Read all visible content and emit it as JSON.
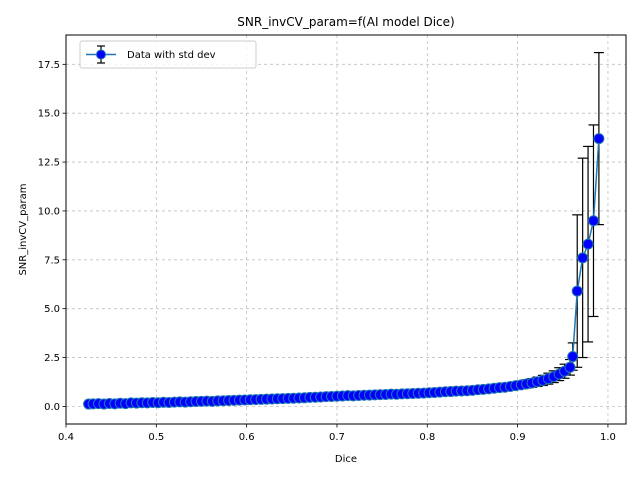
{
  "chart_data": {
    "type": "scatter",
    "title": "SNR_invCV_param=f(AI model Dice)",
    "xlabel": "Dice",
    "ylabel": "SNR_invCV_param",
    "xlim": [
      0.4,
      1.02
    ],
    "ylim": [
      -0.9,
      19.0
    ],
    "xticks": [
      0.4,
      0.5,
      0.6,
      0.7,
      0.8,
      0.9,
      1.0
    ],
    "xtick_labels": [
      "0.4",
      "0.5",
      "0.6",
      "0.7",
      "0.8",
      "0.9",
      "1.0"
    ],
    "yticks": [
      0.0,
      2.5,
      5.0,
      7.5,
      10.0,
      12.5,
      15.0,
      17.5
    ],
    "ytick_labels": [
      "0.0",
      "2.5",
      "5.0",
      "7.5",
      "10.0",
      "12.5",
      "15.0",
      "17.5"
    ],
    "grid": true,
    "legend_position": "top-left",
    "series": [
      {
        "name": "Data with std dev",
        "line_color": "#1f77b4",
        "marker_color": "#0000ff",
        "errorbar_color": "#000000",
        "x": [
          0.425,
          0.43,
          0.436,
          0.442,
          0.448,
          0.454,
          0.46,
          0.466,
          0.472,
          0.478,
          0.484,
          0.49,
          0.496,
          0.502,
          0.508,
          0.514,
          0.52,
          0.526,
          0.532,
          0.538,
          0.544,
          0.55,
          0.556,
          0.562,
          0.568,
          0.574,
          0.58,
          0.586,
          0.592,
          0.598,
          0.604,
          0.61,
          0.616,
          0.622,
          0.628,
          0.634,
          0.64,
          0.646,
          0.652,
          0.658,
          0.664,
          0.67,
          0.676,
          0.682,
          0.688,
          0.694,
          0.7,
          0.706,
          0.712,
          0.718,
          0.724,
          0.73,
          0.736,
          0.742,
          0.748,
          0.754,
          0.76,
          0.766,
          0.772,
          0.778,
          0.784,
          0.79,
          0.796,
          0.802,
          0.808,
          0.814,
          0.82,
          0.826,
          0.832,
          0.838,
          0.844,
          0.85,
          0.856,
          0.862,
          0.868,
          0.874,
          0.88,
          0.886,
          0.892,
          0.898,
          0.904,
          0.91,
          0.916,
          0.922,
          0.928,
          0.934,
          0.94,
          0.946,
          0.952,
          0.958,
          0.961,
          0.966,
          0.972,
          0.978,
          0.984,
          0.99
        ],
        "y": [
          0.12,
          0.13,
          0.14,
          0.12,
          0.15,
          0.13,
          0.16,
          0.14,
          0.18,
          0.17,
          0.19,
          0.18,
          0.2,
          0.19,
          0.21,
          0.2,
          0.22,
          0.23,
          0.22,
          0.24,
          0.25,
          0.26,
          0.27,
          0.26,
          0.28,
          0.29,
          0.3,
          0.31,
          0.32,
          0.33,
          0.34,
          0.35,
          0.36,
          0.37,
          0.38,
          0.39,
          0.4,
          0.41,
          0.42,
          0.43,
          0.44,
          0.46,
          0.47,
          0.48,
          0.5,
          0.51,
          0.52,
          0.53,
          0.55,
          0.54,
          0.56,
          0.57,
          0.58,
          0.59,
          0.6,
          0.61,
          0.63,
          0.62,
          0.64,
          0.65,
          0.66,
          0.67,
          0.68,
          0.7,
          0.71,
          0.73,
          0.75,
          0.76,
          0.78,
          0.79,
          0.8,
          0.82,
          0.85,
          0.87,
          0.9,
          0.93,
          0.96,
          0.98,
          1.02,
          1.06,
          1.1,
          1.15,
          1.2,
          1.26,
          1.33,
          1.42,
          1.52,
          1.65,
          1.8,
          2.0,
          2.55,
          5.9,
          7.6,
          8.3,
          9.5,
          13.7
        ],
        "err": [
          0.04,
          0.04,
          0.04,
          0.04,
          0.04,
          0.04,
          0.04,
          0.04,
          0.05,
          0.05,
          0.05,
          0.05,
          0.05,
          0.05,
          0.05,
          0.05,
          0.05,
          0.05,
          0.05,
          0.05,
          0.05,
          0.05,
          0.06,
          0.06,
          0.06,
          0.06,
          0.06,
          0.06,
          0.06,
          0.06,
          0.06,
          0.06,
          0.07,
          0.07,
          0.07,
          0.07,
          0.07,
          0.07,
          0.07,
          0.07,
          0.08,
          0.08,
          0.08,
          0.08,
          0.08,
          0.08,
          0.08,
          0.08,
          0.09,
          0.09,
          0.09,
          0.09,
          0.09,
          0.09,
          0.1,
          0.1,
          0.1,
          0.1,
          0.1,
          0.1,
          0.11,
          0.11,
          0.11,
          0.11,
          0.12,
          0.12,
          0.12,
          0.12,
          0.13,
          0.13,
          0.13,
          0.14,
          0.14,
          0.15,
          0.15,
          0.16,
          0.16,
          0.17,
          0.18,
          0.19,
          0.2,
          0.21,
          0.22,
          0.24,
          0.26,
          0.28,
          0.3,
          0.33,
          0.36,
          0.4,
          0.7,
          3.9,
          5.1,
          5.0,
          4.9,
          4.4
        ]
      }
    ]
  }
}
